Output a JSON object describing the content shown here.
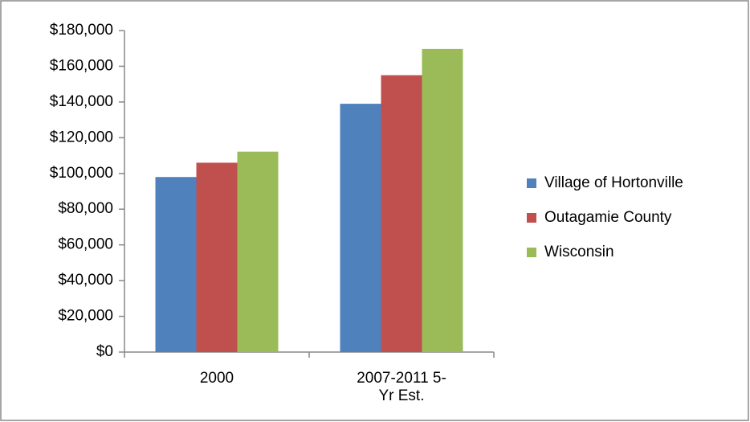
{
  "chart_data": {
    "type": "bar",
    "categories": [
      "2000",
      "2007-2011 5-Yr Est."
    ],
    "series": [
      {
        "name": "Village of Hortonville",
        "color": "#4f81bd",
        "values": [
          98000,
          139000
        ]
      },
      {
        "name": "Outagamie County",
        "color": "#c0504d",
        "values": [
          106000,
          155000
        ]
      },
      {
        "name": "Wisconsin",
        "color": "#9bbb59",
        "values": [
          112200,
          169700
        ]
      }
    ],
    "ylim": [
      0,
      180000
    ],
    "yticks": [
      {
        "value": 0,
        "label": "$0"
      },
      {
        "value": 20000,
        "label": "$20,000"
      },
      {
        "value": 40000,
        "label": "$40,000"
      },
      {
        "value": 60000,
        "label": "$60,000"
      },
      {
        "value": 80000,
        "label": "$80,000"
      },
      {
        "value": 100000,
        "label": "$100,000"
      },
      {
        "value": 120000,
        "label": "$120,000"
      },
      {
        "value": 140000,
        "label": "$140,000"
      },
      {
        "value": 160000,
        "label": "$160,000"
      },
      {
        "value": 180000,
        "label": "$180,000"
      }
    ],
    "grid": false,
    "legend": "right"
  }
}
